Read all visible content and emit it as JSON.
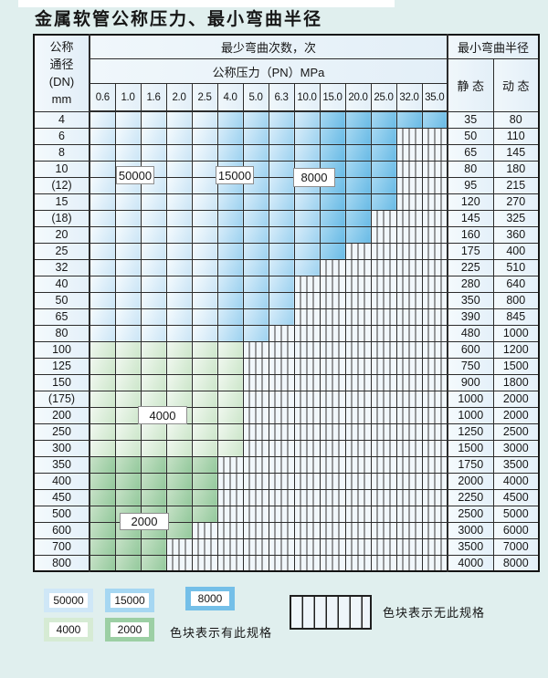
{
  "title": "金属软管公称压力、最小弯曲半径",
  "table": {
    "dn_header_lines": [
      "公称",
      "通径",
      "(DN)",
      "mm"
    ],
    "bend_count_header": "最少弯曲次数，次",
    "pressure_header": "公称压力（PN）MPa",
    "pressure_columns": [
      "0.6",
      "1.0",
      "1.6",
      "2.0",
      "2.5",
      "4.0",
      "5.0",
      "6.3",
      "10.0",
      "15.0",
      "20.0",
      "25.0",
      "32.0",
      "35.0"
    ],
    "radius_header": "最小弯曲半径",
    "static_header": "静 态",
    "dynamic_header": "动 态",
    "rows": [
      {
        "dn": "4",
        "bands": [
          [
            "50000",
            5
          ],
          [
            "15000",
            4
          ],
          [
            "8000",
            5
          ]
        ],
        "static": "35",
        "dynamic": "80"
      },
      {
        "dn": "6",
        "bands": [
          [
            "50000",
            5
          ],
          [
            "15000",
            4
          ],
          [
            "8000",
            3
          ],
          [
            "none",
            2
          ]
        ],
        "static": "50",
        "dynamic": "110"
      },
      {
        "dn": "8",
        "bands": [
          [
            "50000",
            5
          ],
          [
            "15000",
            4
          ],
          [
            "8000",
            3
          ],
          [
            "none",
            2
          ]
        ],
        "static": "65",
        "dynamic": "145"
      },
      {
        "dn": "10",
        "bands": [
          [
            "50000",
            5
          ],
          [
            "15000",
            4
          ],
          [
            "8000",
            3
          ],
          [
            "none",
            2
          ]
        ],
        "static": "80",
        "dynamic": "180"
      },
      {
        "dn": "(12)",
        "bands": [
          [
            "50000",
            5
          ],
          [
            "15000",
            4
          ],
          [
            "8000",
            3
          ],
          [
            "none",
            2
          ]
        ],
        "static": "95",
        "dynamic": "215"
      },
      {
        "dn": "15",
        "bands": [
          [
            "50000",
            5
          ],
          [
            "15000",
            4
          ],
          [
            "8000",
            3
          ],
          [
            "none",
            2
          ]
        ],
        "static": "120",
        "dynamic": "270"
      },
      {
        "dn": "(18)",
        "bands": [
          [
            "50000",
            5
          ],
          [
            "15000",
            4
          ],
          [
            "8000",
            2
          ],
          [
            "none",
            3
          ]
        ],
        "static": "145",
        "dynamic": "325"
      },
      {
        "dn": "20",
        "bands": [
          [
            "50000",
            5
          ],
          [
            "15000",
            4
          ],
          [
            "8000",
            2
          ],
          [
            "none",
            3
          ]
        ],
        "static": "160",
        "dynamic": "360"
      },
      {
        "dn": "25",
        "bands": [
          [
            "50000",
            5
          ],
          [
            "15000",
            4
          ],
          [
            "8000",
            1
          ],
          [
            "none",
            4
          ]
        ],
        "static": "175",
        "dynamic": "400"
      },
      {
        "dn": "32",
        "bands": [
          [
            "50000",
            5
          ],
          [
            "15000",
            4
          ],
          [
            "none",
            5
          ]
        ],
        "static": "225",
        "dynamic": "510"
      },
      {
        "dn": "40",
        "bands": [
          [
            "50000",
            5
          ],
          [
            "15000",
            3
          ],
          [
            "none",
            6
          ]
        ],
        "static": "280",
        "dynamic": "640"
      },
      {
        "dn": "50",
        "bands": [
          [
            "50000",
            5
          ],
          [
            "15000",
            3
          ],
          [
            "none",
            6
          ]
        ],
        "static": "350",
        "dynamic": "800"
      },
      {
        "dn": "65",
        "bands": [
          [
            "50000",
            5
          ],
          [
            "15000",
            3
          ],
          [
            "none",
            6
          ]
        ],
        "static": "390",
        "dynamic": "845"
      },
      {
        "dn": "80",
        "bands": [
          [
            "50000",
            5
          ],
          [
            "15000",
            2
          ],
          [
            "none",
            7
          ]
        ],
        "static": "480",
        "dynamic": "1000"
      },
      {
        "dn": "100",
        "bands": [
          [
            "4000",
            6
          ],
          [
            "none",
            8
          ]
        ],
        "static": "600",
        "dynamic": "1200"
      },
      {
        "dn": "125",
        "bands": [
          [
            "4000",
            6
          ],
          [
            "none",
            8
          ]
        ],
        "static": "750",
        "dynamic": "1500"
      },
      {
        "dn": "150",
        "bands": [
          [
            "4000",
            6
          ],
          [
            "none",
            8
          ]
        ],
        "static": "900",
        "dynamic": "1800"
      },
      {
        "dn": "(175)",
        "bands": [
          [
            "4000",
            6
          ],
          [
            "none",
            8
          ]
        ],
        "static": "1000",
        "dynamic": "2000"
      },
      {
        "dn": "200",
        "bands": [
          [
            "4000",
            6
          ],
          [
            "none",
            8
          ]
        ],
        "static": "1000",
        "dynamic": "2000"
      },
      {
        "dn": "250",
        "bands": [
          [
            "4000",
            6
          ],
          [
            "none",
            8
          ]
        ],
        "static": "1250",
        "dynamic": "2500"
      },
      {
        "dn": "300",
        "bands": [
          [
            "4000",
            6
          ],
          [
            "none",
            8
          ]
        ],
        "static": "1500",
        "dynamic": "3000"
      },
      {
        "dn": "350",
        "bands": [
          [
            "2000",
            5
          ],
          [
            "none",
            9
          ]
        ],
        "static": "1750",
        "dynamic": "3500"
      },
      {
        "dn": "400",
        "bands": [
          [
            "2000",
            5
          ],
          [
            "none",
            9
          ]
        ],
        "static": "2000",
        "dynamic": "4000"
      },
      {
        "dn": "450",
        "bands": [
          [
            "2000",
            5
          ],
          [
            "none",
            9
          ]
        ],
        "static": "2250",
        "dynamic": "4500"
      },
      {
        "dn": "500",
        "bands": [
          [
            "2000",
            5
          ],
          [
            "none",
            9
          ]
        ],
        "static": "2500",
        "dynamic": "5000"
      },
      {
        "dn": "600",
        "bands": [
          [
            "2000",
            4
          ],
          [
            "none",
            10
          ]
        ],
        "static": "3000",
        "dynamic": "6000"
      },
      {
        "dn": "700",
        "bands": [
          [
            "2000",
            3
          ],
          [
            "none",
            11
          ]
        ],
        "static": "3500",
        "dynamic": "7000"
      },
      {
        "dn": "800",
        "bands": [
          [
            "2000",
            3
          ],
          [
            "none",
            11
          ]
        ],
        "static": "4000",
        "dynamic": "8000"
      }
    ]
  },
  "overlay_labels": {
    "l50000": "50000",
    "l15000": "15000",
    "l8000": "8000",
    "l4000": "4000",
    "l2000": "2000"
  },
  "legend": {
    "swatches": {
      "s50000": "50000",
      "s15000": "15000",
      "s8000": "8000",
      "s4000": "4000",
      "s2000": "2000"
    },
    "has_spec_text": "色块表示有此规格",
    "no_spec_text": "色块表示无此规格"
  },
  "colors": {
    "region_50000": "#cfe7f7",
    "region_15000": "#a6d7f2",
    "region_8000": "#74bfe8",
    "region_4000": "#d6ebd4",
    "region_2000": "#9ccfa4",
    "hatch_fill": "#eef5fa",
    "page_background": "#e0efee",
    "grid_border": "#2c2c2c"
  }
}
